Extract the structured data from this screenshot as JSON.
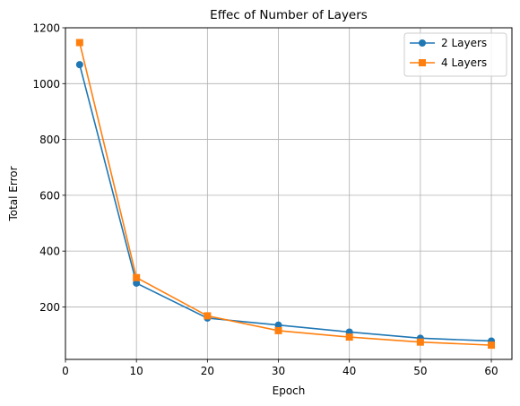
{
  "chart_data": {
    "type": "line",
    "title": "Effec of Number of Layers",
    "xlabel": "Epoch",
    "ylabel": "Total Error",
    "x": [
      2,
      10,
      20,
      30,
      40,
      50,
      60
    ],
    "xlim": [
      0,
      62.9
    ],
    "ylim": [
      12,
      1200
    ],
    "x_ticks": [
      0,
      10,
      20,
      30,
      40,
      50,
      60
    ],
    "y_ticks": [
      200,
      400,
      600,
      800,
      1000,
      1200
    ],
    "grid": true,
    "legend_position": "top-right",
    "series": [
      {
        "name": "2 Layers",
        "color": "#1f77b4",
        "marker": "circle",
        "values": [
          1068,
          285,
          160,
          135,
          110,
          88,
          78
        ]
      },
      {
        "name": "4 Layers",
        "color": "#ff7f0e",
        "marker": "square",
        "values": [
          1147,
          305,
          168,
          115,
          92,
          74,
          63
        ]
      }
    ]
  }
}
